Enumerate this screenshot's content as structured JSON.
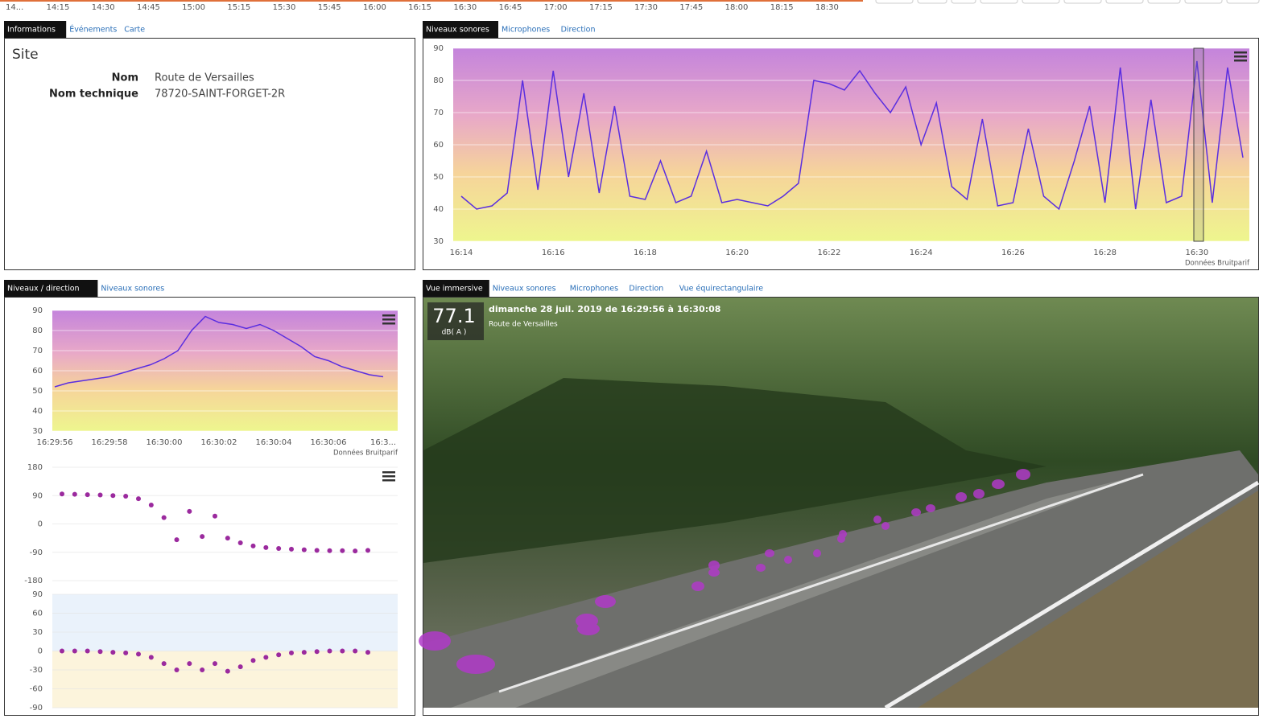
{
  "timeline": {
    "labels": [
      "14...",
      "14:15",
      "14:30",
      "14:45",
      "15:00",
      "15:15",
      "15:30",
      "15:45",
      "16:00",
      "16:15",
      "16:30",
      "16:45",
      "17:00",
      "17:15",
      "17:30",
      "17:45",
      "18:00",
      "18:15",
      "18:30"
    ]
  },
  "info": {
    "tabs": [
      "Informations",
      "Événements",
      "Carte"
    ],
    "title": "Site",
    "fields": [
      {
        "label": "Nom",
        "value": "Route de Versailles"
      },
      {
        "label": "Nom technique",
        "value": "78720-SAINT-FORGET-2R"
      }
    ]
  },
  "levels": {
    "tabs": [
      "Niveaux sonores",
      "Microphones",
      "Direction"
    ],
    "chart": {
      "type": "line",
      "color": "#5a2ee0",
      "credit": "Données Bruitparif",
      "categories": [
        "16:14",
        null,
        null,
        null,
        null,
        null,
        "16:16",
        null,
        null,
        null,
        null,
        null,
        "16:18",
        null,
        null,
        null,
        null,
        null,
        "16:20",
        null,
        null,
        null,
        null,
        null,
        "16:22",
        null,
        null,
        null,
        null,
        null,
        "16:24",
        null,
        null,
        null,
        null,
        null,
        "16:26",
        null,
        null,
        null,
        null,
        null,
        "16:28",
        null,
        null,
        null,
        null,
        null,
        "16:30",
        null,
        null,
        null
      ],
      "values": [
        44,
        40,
        41,
        45,
        80,
        46,
        83,
        50,
        76,
        45,
        72,
        44,
        43,
        55,
        42,
        44,
        58,
        42,
        43,
        42,
        41,
        44,
        48,
        80,
        79,
        77,
        83,
        76,
        70,
        78,
        60,
        73,
        47,
        43,
        68,
        41,
        42,
        65,
        44,
        40,
        55,
        72,
        42,
        84,
        40,
        74,
        42,
        44,
        86,
        42,
        84,
        56
      ],
      "ylim": [
        30,
        90
      ],
      "yticks": [
        30,
        40,
        50,
        60,
        70,
        80,
        90
      ]
    }
  },
  "direction": {
    "tabs": [
      "Niveaux / direction",
      "Niveaux sonores"
    ],
    "level_chart": {
      "type": "line",
      "color": "#5a2ee0",
      "credit": "Données Bruitparif",
      "categories": [
        "16:29:56",
        null,
        null,
        null,
        "16:29:58",
        null,
        null,
        null,
        "16:30:00",
        null,
        null,
        null,
        "16:30:02",
        null,
        null,
        null,
        "16:30:04",
        null,
        null,
        null,
        "16:30:06",
        null,
        null,
        null,
        "16:3..."
      ],
      "values": [
        52,
        54,
        55,
        56,
        57,
        59,
        61,
        63,
        66,
        70,
        80,
        87,
        84,
        83,
        81,
        83,
        80,
        76,
        72,
        67,
        65,
        62,
        60,
        58,
        57
      ],
      "ylim": [
        30,
        90
      ],
      "yticks": [
        30,
        40,
        50,
        60,
        70,
        80,
        90
      ]
    },
    "azimuth_chart": {
      "type": "scatter",
      "color": "#9b2a9e",
      "values": [
        95,
        94,
        93,
        92,
        90,
        88,
        80,
        60,
        20,
        -50,
        40,
        -40,
        25,
        -45,
        -60,
        -70,
        -75,
        -78,
        -80,
        -82,
        -84,
        -85,
        -85,
        -86,
        -84
      ],
      "ylim": [
        -180,
        180
      ],
      "yticks": [
        -180,
        -90,
        0,
        90,
        180
      ]
    },
    "elevation_chart": {
      "type": "scatter",
      "color": "#9b2a9e",
      "values": [
        0,
        0,
        0,
        -1,
        -2,
        -3,
        -5,
        -10,
        -20,
        -30,
        -20,
        -30,
        -20,
        -32,
        -25,
        -15,
        -10,
        -6,
        -3,
        -2,
        -1,
        0,
        0,
        0,
        -2
      ],
      "ylim": [
        -90,
        90
      ],
      "yticks": [
        -90,
        -60,
        -30,
        0,
        30,
        60,
        90
      ]
    }
  },
  "immersive": {
    "tabs": [
      "Vue immersive",
      "Niveaux sonores",
      "Microphones",
      "Direction",
      "Vue équirectangulaire"
    ],
    "level": "77.1",
    "unit": "dB( A )",
    "caption": "dimanche 28 juil. 2019 de 16:29:56 à 16:30:08",
    "place": "Route de Versailles"
  }
}
